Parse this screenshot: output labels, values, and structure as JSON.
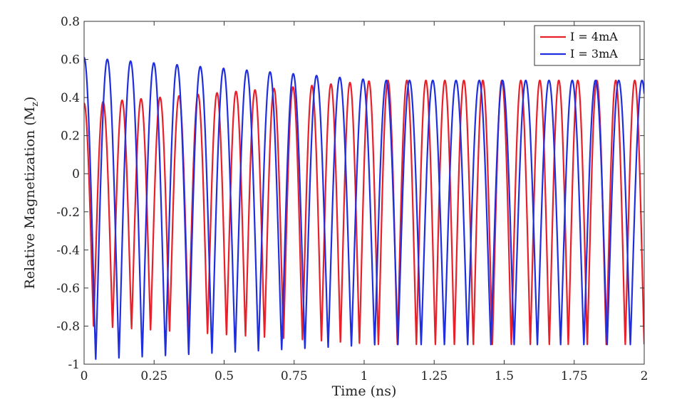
{
  "chart_data": {
    "type": "line",
    "title": "",
    "xlabel": "Time (ns)",
    "ylabel": "Relative Magnetization (M",
    "ylabel_subscript": "z",
    "ylabel_close": ")",
    "xlim": [
      0,
      2
    ],
    "ylim": [
      -1,
      0.8
    ],
    "xticks": [
      0,
      0.25,
      0.5,
      0.75,
      1,
      1.25,
      1.5,
      1.75,
      2
    ],
    "xtick_labels": [
      "0",
      "0.25",
      "0.5",
      "0.75",
      "1",
      "1.25",
      "1.5",
      "1.75",
      "2"
    ],
    "yticks": [
      -1,
      -0.8,
      -0.6,
      -0.4,
      -0.2,
      0,
      0.2,
      0.4,
      0.6,
      0.8
    ],
    "ytick_labels": [
      "-1",
      "-0.8",
      "-0.6",
      "-0.4",
      "-0.2",
      "0",
      "0.2",
      "0.4",
      "0.6",
      "0.8"
    ],
    "grid": false,
    "legend_position": "top-right",
    "series": [
      {
        "name": "I = 4mA",
        "color": "#e8202a",
        "period": 0.0678,
        "peak_start": 0.37,
        "peak_end": 0.49,
        "trough_start": -0.8,
        "trough_end": -0.9,
        "settle_time": 1.05
      },
      {
        "name": "I = 3mA",
        "color": "#1f2fe0",
        "period": 0.083,
        "peak_start": 0.61,
        "peak_end": 0.49,
        "trough_start": -0.98,
        "trough_end": -0.9,
        "settle_time": 1.05
      }
    ]
  }
}
